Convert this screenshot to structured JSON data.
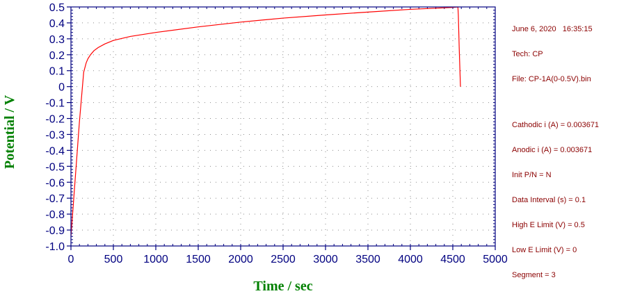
{
  "chart_data": {
    "type": "line",
    "xlabel": "Time / sec",
    "ylabel": "Potential / V",
    "xlim": [
      0,
      5000
    ],
    "ylim": [
      -1.0,
      0.5
    ],
    "xticks": [
      0,
      500,
      1000,
      1500,
      2000,
      2500,
      3000,
      3500,
      4000,
      4500,
      5000
    ],
    "xtick_labels": [
      "0",
      "500",
      "1000",
      "1500",
      "2000",
      "2500",
      "3000",
      "3500",
      "4000",
      "4500",
      "5000"
    ],
    "yticks": [
      0.5,
      0.4,
      0.3,
      0.2,
      0.1,
      0,
      -0.1,
      -0.2,
      -0.3,
      -0.4,
      -0.5,
      -0.6,
      -0.7,
      -0.8,
      -0.9,
      -1.0
    ],
    "ytick_labels": [
      "0.5",
      "0.4",
      "0.3",
      "0.2",
      "0.1",
      "0",
      "-0.1",
      "-0.2",
      "-0.3",
      "-0.4",
      "-0.5",
      "-0.6",
      "-0.7",
      "-0.8",
      "-0.9",
      "-1.0"
    ],
    "grid": true,
    "line_color": "#ff0000",
    "axis_color": "#000080",
    "label_color": "#008000",
    "series": [
      {
        "x": [
          0,
          50,
          100,
          150,
          180,
          200,
          230,
          270,
          320,
          400,
          500,
          700,
          1000,
          1500,
          2000,
          2500,
          3000,
          3500,
          4000,
          4300,
          4500,
          4560,
          4565,
          4575,
          4590
        ],
        "y": [
          -0.94,
          -0.58,
          -0.22,
          0.09,
          0.15,
          0.175,
          0.2,
          0.225,
          0.245,
          0.268,
          0.29,
          0.315,
          0.34,
          0.375,
          0.405,
          0.43,
          0.45,
          0.468,
          0.485,
          0.492,
          0.497,
          0.5,
          0.45,
          0.25,
          0.0
        ]
      }
    ]
  },
  "info": {
    "datetime": "June 6, 2020   16:35:15",
    "tech": "Tech: CP",
    "file": "File: CP-1A(0-0.5V).bin",
    "params": [
      "Cathodic i (A) = 0.003671",
      "Anodic i (A) = 0.003671",
      "Init P/N = N",
      "Data Interval (s) = 0.1",
      "High E Limit (V) = 0.5",
      "Low E Limit (V) = 0",
      "Segment = 3"
    ]
  }
}
